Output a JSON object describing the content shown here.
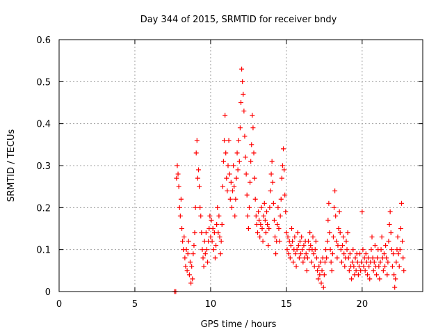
{
  "chart_data": {
    "type": "scatter",
    "title": "Day 344 of 2015, SRMTID for receiver bndy",
    "xlabel": "GPS time / hours",
    "ylabel": "SRMTID / TECUs",
    "xlim": [
      0,
      24
    ],
    "ylim": [
      0,
      0.6
    ],
    "x_ticks": [
      "0",
      "5",
      "10",
      "15",
      "20"
    ],
    "y_ticks": [
      "0",
      "0.1",
      "0.2",
      "0.3",
      "0.4",
      "0.5",
      "0.6"
    ],
    "grid": true,
    "marker": "+",
    "color": "#ff0000",
    "series": [
      {
        "name": "SRMTID",
        "points": [
          [
            7.6,
            0.0
          ],
          [
            7.7,
            0.0
          ],
          [
            7.75,
            0.27
          ],
          [
            7.8,
            0.3
          ],
          [
            7.85,
            0.28
          ],
          [
            7.9,
            0.25
          ],
          [
            7.95,
            0.2
          ],
          [
            8.0,
            0.18
          ],
          [
            8.05,
            0.22
          ],
          [
            8.1,
            0.15
          ],
          [
            8.15,
            0.12
          ],
          [
            8.2,
            0.1
          ],
          [
            8.25,
            0.13
          ],
          [
            8.3,
            0.08
          ],
          [
            8.35,
            0.06
          ],
          [
            8.4,
            0.1
          ],
          [
            8.45,
            0.05
          ],
          [
            8.5,
            0.09
          ],
          [
            8.55,
            0.12
          ],
          [
            8.6,
            0.04
          ],
          [
            8.65,
            0.07
          ],
          [
            8.7,
            0.02
          ],
          [
            8.75,
            0.06
          ],
          [
            8.8,
            0.03
          ],
          [
            8.85,
            0.09
          ],
          [
            8.9,
            0.11
          ],
          [
            8.95,
            0.14
          ],
          [
            9.0,
            0.2
          ],
          [
            9.05,
            0.33
          ],
          [
            9.1,
            0.36
          ],
          [
            9.15,
            0.27
          ],
          [
            9.2,
            0.29
          ],
          [
            9.25,
            0.25
          ],
          [
            9.3,
            0.2
          ],
          [
            9.35,
            0.18
          ],
          [
            9.4,
            0.14
          ],
          [
            9.45,
            0.1
          ],
          [
            9.5,
            0.08
          ],
          [
            9.55,
            0.06
          ],
          [
            9.6,
            0.12
          ],
          [
            9.65,
            0.09
          ],
          [
            9.7,
            0.14
          ],
          [
            9.75,
            0.1
          ],
          [
            9.8,
            0.07
          ],
          [
            9.85,
            0.12
          ],
          [
            9.9,
            0.15
          ],
          [
            9.95,
            0.18
          ],
          [
            10.0,
            0.13
          ],
          [
            10.05,
            0.17
          ],
          [
            10.1,
            0.12
          ],
          [
            10.15,
            0.15
          ],
          [
            10.2,
            0.1
          ],
          [
            10.25,
            0.14
          ],
          [
            10.3,
            0.08
          ],
          [
            10.35,
            0.11
          ],
          [
            10.4,
            0.16
          ],
          [
            10.45,
            0.2
          ],
          [
            10.5,
            0.14
          ],
          [
            10.55,
            0.18
          ],
          [
            10.6,
            0.13
          ],
          [
            10.65,
            0.09
          ],
          [
            10.7,
            0.12
          ],
          [
            10.75,
            0.16
          ],
          [
            10.8,
            0.25
          ],
          [
            10.85,
            0.31
          ],
          [
            10.9,
            0.36
          ],
          [
            10.95,
            0.42
          ],
          [
            11.0,
            0.33
          ],
          [
            11.05,
            0.27
          ],
          [
            11.1,
            0.24
          ],
          [
            11.15,
            0.3
          ],
          [
            11.2,
            0.36
          ],
          [
            11.25,
            0.28
          ],
          [
            11.3,
            0.22
          ],
          [
            11.35,
            0.26
          ],
          [
            11.4,
            0.2
          ],
          [
            11.45,
            0.24
          ],
          [
            11.5,
            0.3
          ],
          [
            11.55,
            0.25
          ],
          [
            11.6,
            0.18
          ],
          [
            11.65,
            0.22
          ],
          [
            11.7,
            0.27
          ],
          [
            11.75,
            0.33
          ],
          [
            11.8,
            0.29
          ],
          [
            11.85,
            0.36
          ],
          [
            11.9,
            0.31
          ],
          [
            11.95,
            0.39
          ],
          [
            12.0,
            0.45
          ],
          [
            12.05,
            0.53
          ],
          [
            12.1,
            0.5
          ],
          [
            12.15,
            0.47
          ],
          [
            12.2,
            0.43
          ],
          [
            12.25,
            0.37
          ],
          [
            12.3,
            0.32
          ],
          [
            12.35,
            0.28
          ],
          [
            12.4,
            0.23
          ],
          [
            12.45,
            0.18
          ],
          [
            12.5,
            0.15
          ],
          [
            12.55,
            0.2
          ],
          [
            12.6,
            0.26
          ],
          [
            12.65,
            0.31
          ],
          [
            12.7,
            0.35
          ],
          [
            12.75,
            0.42
          ],
          [
            12.8,
            0.39
          ],
          [
            12.85,
            0.33
          ],
          [
            12.9,
            0.27
          ],
          [
            12.95,
            0.22
          ],
          [
            13.0,
            0.18
          ],
          [
            13.05,
            0.16
          ],
          [
            13.1,
            0.14
          ],
          [
            13.15,
            0.19
          ],
          [
            13.2,
            0.17
          ],
          [
            13.25,
            0.13
          ],
          [
            13.3,
            0.16
          ],
          [
            13.35,
            0.2
          ],
          [
            13.4,
            0.15
          ],
          [
            13.45,
            0.12
          ],
          [
            13.5,
            0.18
          ],
          [
            13.55,
            0.21
          ],
          [
            13.6,
            0.17
          ],
          [
            13.65,
            0.14
          ],
          [
            13.7,
            0.19
          ],
          [
            13.75,
            0.16
          ],
          [
            13.8,
            0.11
          ],
          [
            13.85,
            0.15
          ],
          [
            13.9,
            0.2
          ],
          [
            13.95,
            0.24
          ],
          [
            14.0,
            0.28
          ],
          [
            14.05,
            0.31
          ],
          [
            14.1,
            0.26
          ],
          [
            14.15,
            0.21
          ],
          [
            14.2,
            0.17
          ],
          [
            14.25,
            0.13
          ],
          [
            14.3,
            0.09
          ],
          [
            14.35,
            0.12
          ],
          [
            14.4,
            0.16
          ],
          [
            14.45,
            0.2
          ],
          [
            14.5,
            0.15
          ],
          [
            14.55,
            0.12
          ],
          [
            14.6,
            0.18
          ],
          [
            14.65,
            0.22
          ],
          [
            14.7,
            0.27
          ],
          [
            14.75,
            0.3
          ],
          [
            14.8,
            0.34
          ],
          [
            14.85,
            0.29
          ],
          [
            14.9,
            0.23
          ],
          [
            14.95,
            0.19
          ],
          [
            15.0,
            0.14
          ],
          [
            15.05,
            0.1
          ],
          [
            15.1,
            0.13
          ],
          [
            15.15,
            0.09
          ],
          [
            15.2,
            0.12
          ],
          [
            15.25,
            0.08
          ],
          [
            15.3,
            0.11
          ],
          [
            15.35,
            0.15
          ],
          [
            15.4,
            0.12
          ],
          [
            15.45,
            0.07
          ],
          [
            15.5,
            0.1
          ],
          [
            15.55,
            0.13
          ],
          [
            15.6,
            0.09
          ],
          [
            15.65,
            0.06
          ],
          [
            15.7,
            0.1
          ],
          [
            15.75,
            0.14
          ],
          [
            15.8,
            0.11
          ],
          [
            15.85,
            0.08
          ],
          [
            15.9,
            0.12
          ],
          [
            15.95,
            0.09
          ],
          [
            16.0,
            0.13
          ],
          [
            16.05,
            0.1
          ],
          [
            16.1,
            0.07
          ],
          [
            16.15,
            0.11
          ],
          [
            16.2,
            0.08
          ],
          [
            16.25,
            0.12
          ],
          [
            16.3,
            0.09
          ],
          [
            16.35,
            0.05
          ],
          [
            16.4,
            0.08
          ],
          [
            16.45,
            0.12
          ],
          [
            16.5,
            0.1
          ],
          [
            16.55,
            0.14
          ],
          [
            16.6,
            0.11
          ],
          [
            16.65,
            0.07
          ],
          [
            16.7,
            0.1
          ],
          [
            16.75,
            0.13
          ],
          [
            16.8,
            0.09
          ],
          [
            16.85,
            0.06
          ],
          [
            16.9,
            0.1
          ],
          [
            16.95,
            0.12
          ],
          [
            17.0,
            0.08
          ],
          [
            17.05,
            0.05
          ],
          [
            17.1,
            0.03
          ],
          [
            17.15,
            0.06
          ],
          [
            17.2,
            0.04
          ],
          [
            17.25,
            0.07
          ],
          [
            17.3,
            0.02
          ],
          [
            17.35,
            0.05
          ],
          [
            17.4,
            0.08
          ],
          [
            17.45,
            0.01
          ],
          [
            17.5,
            0.04
          ],
          [
            17.55,
            0.07
          ],
          [
            17.6,
            0.1
          ],
          [
            17.65,
            0.08
          ],
          [
            17.7,
            0.12
          ],
          [
            17.75,
            0.17
          ],
          [
            17.8,
            0.21
          ],
          [
            17.85,
            0.14
          ],
          [
            17.9,
            0.1
          ],
          [
            17.95,
            0.07
          ],
          [
            18.0,
            0.05
          ],
          [
            18.05,
            0.09
          ],
          [
            18.1,
            0.13
          ],
          [
            18.15,
            0.2
          ],
          [
            18.2,
            0.24
          ],
          [
            18.25,
            0.18
          ],
          [
            18.3,
            0.12
          ],
          [
            18.35,
            0.08
          ],
          [
            18.4,
            0.11
          ],
          [
            18.45,
            0.15
          ],
          [
            18.5,
            0.19
          ],
          [
            18.55,
            0.14
          ],
          [
            18.6,
            0.1
          ],
          [
            18.65,
            0.07
          ],
          [
            18.7,
            0.11
          ],
          [
            18.75,
            0.13
          ],
          [
            18.8,
            0.09
          ],
          [
            18.85,
            0.06
          ],
          [
            18.9,
            0.08
          ],
          [
            18.95,
            0.12
          ],
          [
            19.0,
            0.1
          ],
          [
            19.05,
            0.14
          ],
          [
            19.1,
            0.08
          ],
          [
            19.15,
            0.05
          ],
          [
            19.2,
            0.09
          ],
          [
            19.25,
            0.06
          ],
          [
            19.3,
            0.03
          ],
          [
            19.35,
            0.07
          ],
          [
            19.4,
            0.1
          ],
          [
            19.45,
            0.06
          ],
          [
            19.5,
            0.04
          ],
          [
            19.55,
            0.08
          ],
          [
            19.6,
            0.05
          ],
          [
            19.65,
            0.09
          ],
          [
            19.7,
            0.07
          ],
          [
            19.75,
            0.04
          ],
          [
            19.8,
            0.06
          ],
          [
            19.85,
            0.09
          ],
          [
            19.9,
            0.05
          ],
          [
            19.95,
            0.07
          ],
          [
            20.0,
            0.19
          ],
          [
            20.05,
            0.1
          ],
          [
            20.1,
            0.06
          ],
          [
            20.15,
            0.08
          ],
          [
            20.2,
            0.05
          ],
          [
            20.25,
            0.09
          ],
          [
            20.3,
            0.07
          ],
          [
            20.35,
            0.04
          ],
          [
            20.4,
            0.08
          ],
          [
            20.45,
            0.06
          ],
          [
            20.5,
            0.03
          ],
          [
            20.55,
            0.07
          ],
          [
            20.6,
            0.1
          ],
          [
            20.65,
            0.13
          ],
          [
            20.7,
            0.08
          ],
          [
            20.75,
            0.05
          ],
          [
            20.8,
            0.07
          ],
          [
            20.85,
            0.11
          ],
          [
            20.9,
            0.06
          ],
          [
            20.95,
            0.04
          ],
          [
            21.0,
            0.08
          ],
          [
            21.05,
            0.1
          ],
          [
            21.1,
            0.06
          ],
          [
            21.15,
            0.03
          ],
          [
            21.2,
            0.07
          ],
          [
            21.25,
            0.1
          ],
          [
            21.3,
            0.13
          ],
          [
            21.35,
            0.08
          ],
          [
            21.4,
            0.05
          ],
          [
            21.45,
            0.09
          ],
          [
            21.5,
            0.06
          ],
          [
            21.55,
            0.11
          ],
          [
            21.6,
            0.08
          ],
          [
            21.65,
            0.04
          ],
          [
            21.7,
            0.07
          ],
          [
            21.75,
            0.12
          ],
          [
            21.8,
            0.16
          ],
          [
            21.85,
            0.19
          ],
          [
            21.9,
            0.14
          ],
          [
            21.95,
            0.1
          ],
          [
            22.0,
            0.06
          ],
          [
            22.05,
            0.09
          ],
          [
            22.1,
            0.04
          ],
          [
            22.15,
            0.01
          ],
          [
            22.2,
            0.03
          ],
          [
            22.25,
            0.07
          ],
          [
            22.3,
            0.1
          ],
          [
            22.35,
            0.13
          ],
          [
            22.4,
            0.09
          ],
          [
            22.45,
            0.06
          ],
          [
            22.5,
            0.1
          ],
          [
            22.55,
            0.15
          ],
          [
            22.6,
            0.21
          ],
          [
            22.65,
            0.12
          ],
          [
            22.7,
            0.08
          ],
          [
            22.75,
            0.05
          ]
        ]
      }
    ]
  }
}
